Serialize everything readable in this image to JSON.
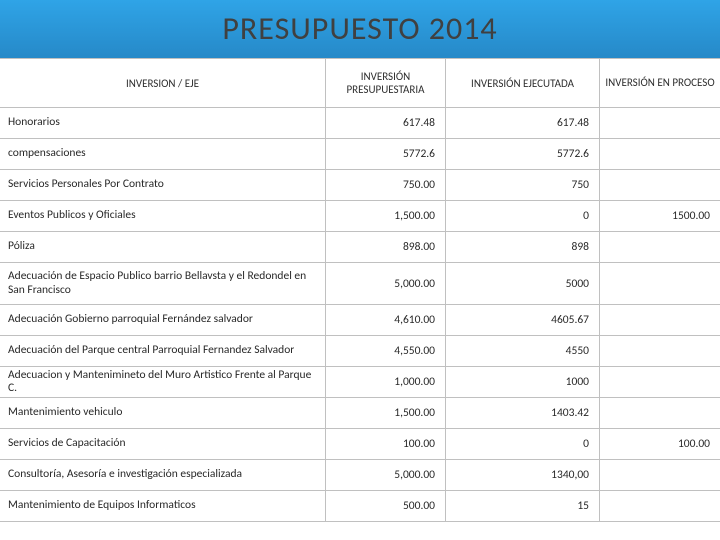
{
  "title": "PRESUPUESTO 2014",
  "headers": {
    "label": "INVERSION / EJE",
    "col1": "INVERSIÓN PRESUPUESTARIA",
    "col2": "INVERSIÓN EJECUTADA",
    "col3": "INVERSIÓN EN PROCESO"
  },
  "rows": [
    {
      "label": "Honorarios",
      "c1": "617.48",
      "c2": "617.48",
      "c3": ""
    },
    {
      "label": "compensaciones",
      "c1": "5772.6",
      "c2": "5772.6",
      "c3": ""
    },
    {
      "label": "Servicios Personales Por Contrato",
      "c1": "750.00",
      "c2": "750",
      "c3": ""
    },
    {
      "label": "Eventos Publicos y Oficiales",
      "c1": "1,500.00",
      "c2": "0",
      "c3": "1500.00"
    },
    {
      "label": "Póliza",
      "c1": "898.00",
      "c2": "898",
      "c3": ""
    },
    {
      "label": "Adecuación de Espacio Publico barrio Bellavsta y el Redondel en San Francisco",
      "c1": "5,000.00",
      "c2": "5000",
      "c3": "",
      "tall": true
    },
    {
      "label": "Adecuación Gobierno parroquial Fernández salvador",
      "c1": "4,610.00",
      "c2": "4605.67",
      "c3": ""
    },
    {
      "label": "Adecuación del Parque central Parroquial Fernandez Salvador",
      "c1": "4,550.00",
      "c2": "4550",
      "c3": ""
    },
    {
      "label": "Adecuacion y Mantenimineto del Muro Artistico Frente al Parque C.",
      "c1": "1,000.00",
      "c2": "1000",
      "c3": ""
    },
    {
      "label": "Mantenimiento vehiculo",
      "c1": "1,500.00",
      "c2": "1403.42",
      "c3": ""
    },
    {
      "label": "Servicios de Capacitación",
      "c1": "100.00",
      "c2": "0",
      "c3": "100.00"
    },
    {
      "label": "Consultoría, Asesoría e investigación especializada",
      "c1": "5,000.00",
      "c2": "1340,00",
      "c3": ""
    },
    {
      "label": "Mantenimiento de Equipos Informaticos",
      "c1": "500.00",
      "c2": "15",
      "c3": ""
    }
  ],
  "style": {
    "band_gradient_top": "#2fa4e7",
    "band_gradient_bottom": "#2689c8",
    "border_color": "#c0c0c0",
    "text_color": "#282828",
    "title_fontsize": 32,
    "header_fontsize": 11,
    "row_fontsize": 11.5
  }
}
